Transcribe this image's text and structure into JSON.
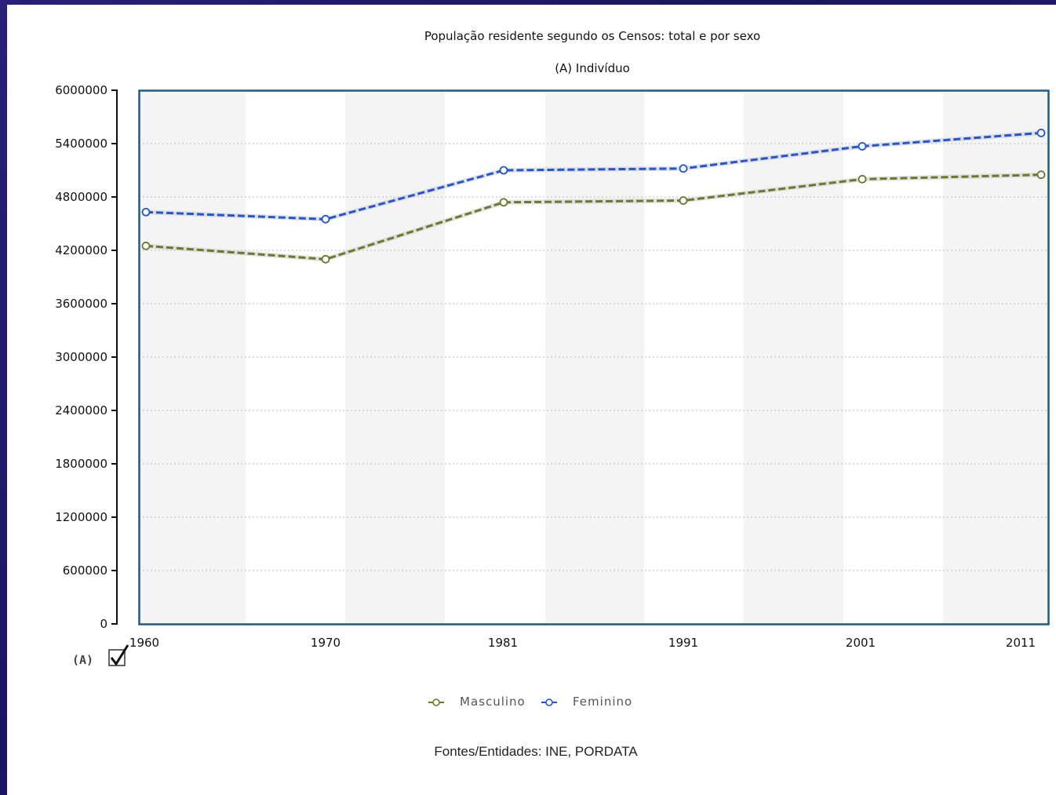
{
  "chart_data": {
    "type": "line",
    "title": "População residente segundo os Censos: total e por sexo",
    "subtitle": "(A) Indivíduo",
    "x": [
      "1960",
      "1970",
      "1981",
      "1991",
      "2001",
      "2011"
    ],
    "ylim": [
      0,
      6000000
    ],
    "yticks": [
      "0",
      "600000",
      "1200000",
      "1800000",
      "2400000",
      "3000000",
      "3600000",
      "4200000",
      "4800000",
      "5400000",
      "6000000"
    ],
    "grid": "horizontal dotted",
    "legend_position": "bottom",
    "series": [
      {
        "name": "Masculino",
        "color": "#6b7a2a",
        "values": [
          4250000,
          4100000,
          4740000,
          4760000,
          5000000,
          5050000
        ]
      },
      {
        "name": "Feminino",
        "color": "#2355d8",
        "values": [
          4630000,
          4550000,
          5100000,
          5120000,
          5370000,
          5520000
        ]
      }
    ]
  },
  "source": "Fontes/Entidades: INE, PORDATA",
  "toggle": {
    "label": "(A)",
    "checked": true,
    "check_icon": "checkbox-checked-icon"
  }
}
